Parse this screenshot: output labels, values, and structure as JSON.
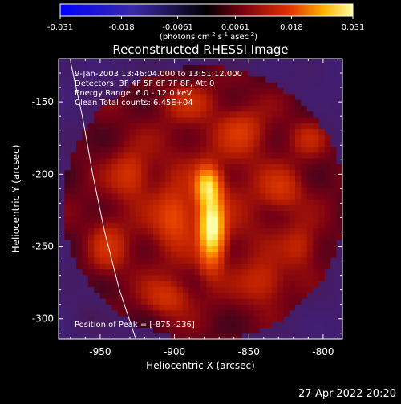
{
  "colorbar": {
    "tick_labels": [
      "-0.031",
      "-0.018",
      "-0.0061",
      "0.0061",
      "0.018",
      "0.031"
    ],
    "tick_values": [
      -0.031,
      -0.018,
      -0.0061,
      0.0061,
      0.018,
      0.031
    ],
    "range": [
      -0.031,
      0.031
    ],
    "units_main": "(photons cm",
    "units_sup1": "-2",
    "units_mid": " s",
    "units_sup2": "-1",
    "units_mid2": " asec",
    "units_sup3": "-2",
    "units_end": ")"
  },
  "title": "Reconstructed RHESSI Image",
  "annotations": {
    "time": "9-Jan-2003 13:46:04.000 to 13:51:12.000",
    "detectors": "Detectors: 3F 4F 5F 6F 7F 8F, Att 0",
    "energy": "Energy Range: 6.0 - 12.0 keV",
    "clean": "Clean     Total counts: 6.45E+04",
    "peak": "Position of Peak = [-875,-236]"
  },
  "footer_date": "27-Apr-2022 20:20",
  "chart_data": {
    "type": "heatmap",
    "title": "Reconstructed RHESSI Image",
    "xlabel": "Heliocentric X (arcsec)",
    "ylabel": "Heliocentric Y (arcsec)",
    "xlim": [
      -978,
      -787
    ],
    "ylim": [
      -314,
      -120
    ],
    "xticks": [
      -950,
      -900,
      -850,
      -800
    ],
    "yticks": [
      -300,
      -250,
      -200,
      -150
    ],
    "xtick_labels": [
      "-950",
      "-900",
      "-850",
      "-800"
    ],
    "ytick_labels": [
      "-300",
      "-250",
      "-200",
      "-150"
    ],
    "colormap": "RHESSI red-yellow (blue for negative)",
    "peak": {
      "x": -875,
      "y": -236
    },
    "limb_curve": [
      [
        -970,
        -122
      ],
      [
        -962,
        -160
      ],
      [
        -955,
        -200
      ],
      [
        -947,
        -240
      ],
      [
        -937,
        -280
      ],
      [
        -926,
        -314
      ]
    ],
    "source_blobs": [
      {
        "x": -875,
        "y": -236,
        "sx": 5,
        "sy": 15,
        "amp": 0.031
      },
      {
        "x": -878,
        "y": -208,
        "sx": 5,
        "sy": 8,
        "amp": 0.02
      },
      {
        "x": -900,
        "y": -230,
        "sx": 8,
        "sy": 12,
        "amp": 0.006
      },
      {
        "x": -855,
        "y": -170,
        "sx": 10,
        "sy": 10,
        "amp": 0.0045
      },
      {
        "x": -930,
        "y": -200,
        "sx": 8,
        "sy": 10,
        "amp": 0.0045
      },
      {
        "x": -828,
        "y": -210,
        "sx": 9,
        "sy": 9,
        "amp": 0.004
      },
      {
        "x": -905,
        "y": -285,
        "sx": 10,
        "sy": 8,
        "amp": 0.0045
      },
      {
        "x": -840,
        "y": -275,
        "sx": 10,
        "sy": 10,
        "amp": 0.004
      },
      {
        "x": -945,
        "y": -250,
        "sx": 8,
        "sy": 12,
        "amp": 0.004
      },
      {
        "x": -890,
        "y": -150,
        "sx": 12,
        "sy": 8,
        "amp": 0.0035
      },
      {
        "x": -815,
        "y": -250,
        "sx": 8,
        "sy": 10,
        "amp": 0.0035
      },
      {
        "x": -810,
        "y": -175,
        "sx": 8,
        "sy": 8,
        "amp": 0.003
      },
      {
        "x": -960,
        "y": -300,
        "sx": 8,
        "sy": 8,
        "amp": 0.003
      }
    ]
  }
}
